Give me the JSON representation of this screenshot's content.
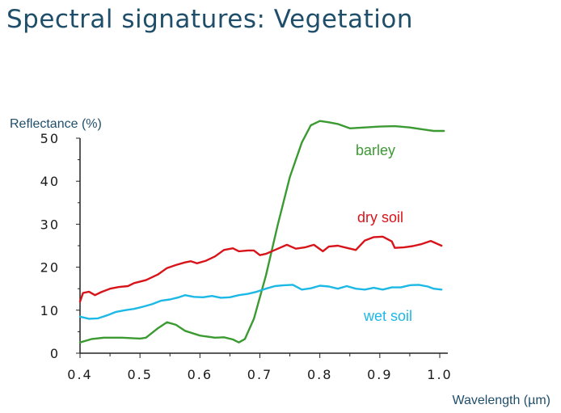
{
  "title": "Spectral signatures: Vegetation",
  "chart_data": {
    "type": "line",
    "xlabel": "Wavelength (µm)",
    "ylabel": "Reflectance (%)",
    "xlim": [
      0.4,
      1.0
    ],
    "ylim": [
      0,
      50
    ],
    "x_ticks": [
      "0.4",
      "0.5",
      "0.6",
      "0.7",
      "0.8",
      "0.9",
      "1.0"
    ],
    "y_ticks": [
      "0",
      "10",
      "20",
      "30",
      "40",
      "50"
    ],
    "grid": false,
    "series": [
      {
        "name": "barley",
        "color": "#3c9a32",
        "points": [
          [
            0.4,
            2.5
          ],
          [
            0.42,
            3.3
          ],
          [
            0.44,
            3.6
          ],
          [
            0.47,
            3.6
          ],
          [
            0.5,
            3.4
          ],
          [
            0.51,
            3.6
          ],
          [
            0.53,
            5.8
          ],
          [
            0.545,
            7.2
          ],
          [
            0.56,
            6.6
          ],
          [
            0.575,
            5.2
          ],
          [
            0.6,
            4.1
          ],
          [
            0.625,
            3.6
          ],
          [
            0.64,
            3.7
          ],
          [
            0.655,
            3.2
          ],
          [
            0.665,
            2.5
          ],
          [
            0.675,
            3.3
          ],
          [
            0.69,
            8.0
          ],
          [
            0.71,
            18.0
          ],
          [
            0.73,
            30.0
          ],
          [
            0.75,
            41.0
          ],
          [
            0.77,
            49.0
          ],
          [
            0.785,
            53.0
          ],
          [
            0.8,
            54.0
          ],
          [
            0.815,
            53.7
          ],
          [
            0.83,
            53.3
          ],
          [
            0.85,
            52.3
          ],
          [
            0.875,
            52.5
          ],
          [
            0.9,
            52.7
          ],
          [
            0.925,
            52.8
          ],
          [
            0.95,
            52.5
          ],
          [
            0.975,
            52.0
          ],
          [
            0.99,
            51.7
          ],
          [
            1.007,
            51.7
          ]
        ]
      },
      {
        "name": "dry soil",
        "color": "#d8141b",
        "points": [
          [
            0.4,
            12.0
          ],
          [
            0.405,
            14.0
          ],
          [
            0.415,
            14.3
          ],
          [
            0.425,
            13.5
          ],
          [
            0.435,
            14.2
          ],
          [
            0.45,
            15.0
          ],
          [
            0.465,
            15.4
          ],
          [
            0.48,
            15.6
          ],
          [
            0.49,
            16.3
          ],
          [
            0.51,
            17.0
          ],
          [
            0.53,
            18.3
          ],
          [
            0.545,
            19.8
          ],
          [
            0.56,
            20.5
          ],
          [
            0.575,
            21.1
          ],
          [
            0.585,
            21.4
          ],
          [
            0.595,
            20.9
          ],
          [
            0.61,
            21.5
          ],
          [
            0.625,
            22.5
          ],
          [
            0.64,
            24.0
          ],
          [
            0.655,
            24.4
          ],
          [
            0.665,
            23.7
          ],
          [
            0.68,
            23.9
          ],
          [
            0.69,
            23.9
          ],
          [
            0.7,
            22.8
          ],
          [
            0.71,
            23.1
          ],
          [
            0.725,
            24.0
          ],
          [
            0.745,
            25.2
          ],
          [
            0.76,
            24.3
          ],
          [
            0.775,
            24.6
          ],
          [
            0.79,
            25.2
          ],
          [
            0.805,
            23.7
          ],
          [
            0.815,
            24.8
          ],
          [
            0.83,
            25.0
          ],
          [
            0.845,
            24.5
          ],
          [
            0.86,
            24.0
          ],
          [
            0.875,
            26.2
          ],
          [
            0.89,
            27.0
          ],
          [
            0.905,
            27.1
          ],
          [
            0.92,
            26.0
          ],
          [
            0.925,
            24.5
          ],
          [
            0.94,
            24.6
          ],
          [
            0.955,
            24.9
          ],
          [
            0.97,
            25.4
          ],
          [
            0.985,
            26.1
          ],
          [
            1.003,
            25.0
          ]
        ]
      },
      {
        "name": "wet soil",
        "color": "#1cb8e6",
        "points": [
          [
            0.4,
            8.5
          ],
          [
            0.415,
            8.0
          ],
          [
            0.43,
            8.1
          ],
          [
            0.445,
            8.8
          ],
          [
            0.46,
            9.6
          ],
          [
            0.475,
            10.0
          ],
          [
            0.49,
            10.3
          ],
          [
            0.505,
            10.8
          ],
          [
            0.52,
            11.4
          ],
          [
            0.535,
            12.2
          ],
          [
            0.55,
            12.5
          ],
          [
            0.565,
            13.0
          ],
          [
            0.575,
            13.5
          ],
          [
            0.59,
            13.1
          ],
          [
            0.605,
            13.0
          ],
          [
            0.62,
            13.3
          ],
          [
            0.635,
            12.9
          ],
          [
            0.65,
            13.0
          ],
          [
            0.665,
            13.5
          ],
          [
            0.68,
            13.8
          ],
          [
            0.695,
            14.3
          ],
          [
            0.71,
            15.0
          ],
          [
            0.725,
            15.6
          ],
          [
            0.74,
            15.8
          ],
          [
            0.755,
            15.9
          ],
          [
            0.77,
            14.8
          ],
          [
            0.785,
            15.1
          ],
          [
            0.8,
            15.7
          ],
          [
            0.815,
            15.5
          ],
          [
            0.83,
            15.0
          ],
          [
            0.845,
            15.6
          ],
          [
            0.86,
            15.0
          ],
          [
            0.875,
            14.8
          ],
          [
            0.89,
            15.2
          ],
          [
            0.905,
            14.8
          ],
          [
            0.92,
            15.3
          ],
          [
            0.935,
            15.3
          ],
          [
            0.95,
            15.8
          ],
          [
            0.965,
            15.9
          ],
          [
            0.98,
            15.5
          ],
          [
            0.99,
            15.0
          ],
          [
            1.003,
            14.8
          ]
        ]
      }
    ]
  }
}
